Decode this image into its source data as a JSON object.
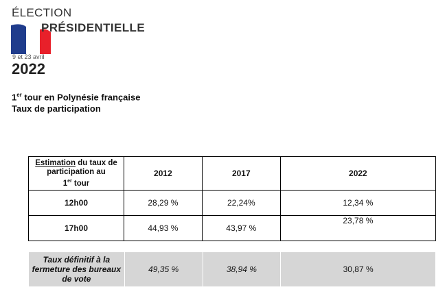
{
  "logo": {
    "title_line1": "ÉLECTION",
    "title_line2": "PRÉSIDENTIELLE",
    "dates": "9 et 23 avril",
    "year": "2022",
    "colors": {
      "blue": "#1f3c8c",
      "white": "#ffffff",
      "red": "#e8202a"
    }
  },
  "heading": {
    "line1_prefix": "1",
    "line1_sup": "er",
    "line1_rest": " tour en Polynésie française",
    "line2": "Taux de participation"
  },
  "table": {
    "corner_underlined": "Estimation",
    "corner_rest": " du taux de participation au",
    "corner_round_prefix": "1",
    "corner_round_sup": "er",
    "corner_round_rest": " tour",
    "years": [
      "2012",
      "2017",
      "2022"
    ],
    "rows": [
      {
        "label": "12h00",
        "values": [
          "28,29 %",
          "22,24%",
          "12,34 %"
        ]
      },
      {
        "label": "17h00",
        "values": [
          "44,93 %",
          "43,97 %",
          "23,78 %"
        ]
      }
    ]
  },
  "final": {
    "label": "Taux définitif à la fermeture des bureaux de vote",
    "values": [
      "49,35 %",
      "38,94 %",
      "30,87 %"
    ]
  }
}
